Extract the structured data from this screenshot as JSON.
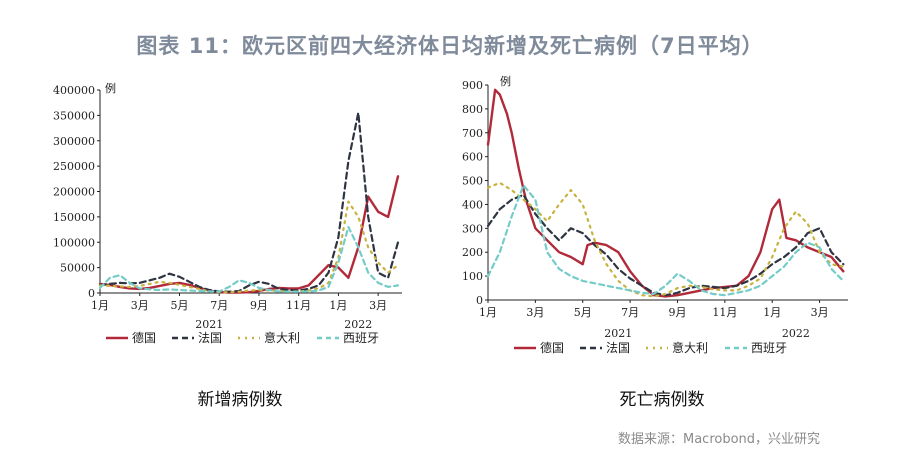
{
  "title": "图表 11：欧元区前四大经济体日均新增及死亡病例（7日平均）",
  "source": "数据来源：Macrobond，兴业研究",
  "colors": {
    "germany": "#b22a3a",
    "france": "#2e3442",
    "italy": "#c8b240",
    "spain": "#74ccc8",
    "title": "#7f8a9a"
  },
  "chart_data": [
    {
      "type": "line",
      "caption": "新增病例数",
      "unit_label": "例",
      "x_ticks": [
        "1月",
        "3月",
        "5月",
        "7月",
        "9月",
        "11月",
        "1月",
        "3月"
      ],
      "x_year_labels": [
        "2021",
        "2022"
      ],
      "x_range": [
        0,
        15.2
      ],
      "ylim": [
        0,
        400000
      ],
      "y_ticks": [
        "0",
        "50000",
        "100000",
        "150000",
        "200000",
        "250000",
        "300000",
        "350000",
        "400000"
      ],
      "grid": false,
      "legend_position": "bottom",
      "series": [
        {
          "name": "德国",
          "color": "#b22a3a",
          "dash": "solid",
          "x": [
            0,
            0.5,
            1,
            1.5,
            2,
            2.5,
            3,
            3.5,
            4,
            4.5,
            5,
            5.5,
            6,
            6.5,
            7,
            7.5,
            8,
            8.5,
            9,
            9.5,
            10,
            10.5,
            11,
            11.5,
            12,
            12.5,
            13,
            13.5,
            14,
            14.5,
            15
          ],
          "y": [
            18000,
            16000,
            12000,
            9000,
            8000,
            10000,
            14000,
            18000,
            20000,
            16000,
            10000,
            5000,
            2000,
            1000,
            800,
            1500,
            4000,
            8000,
            10000,
            9000,
            9000,
            15000,
            35000,
            55000,
            50000,
            30000,
            90000,
            190000,
            160000,
            150000,
            230000
          ]
        },
        {
          "name": "法国",
          "color": "#2e3442",
          "dash": "6,4",
          "x": [
            0,
            0.5,
            1,
            1.5,
            2,
            2.5,
            3,
            3.5,
            4,
            4.5,
            5,
            5.5,
            6,
            6.5,
            7,
            7.5,
            8,
            8.5,
            9,
            9.5,
            10,
            10.5,
            11,
            11.5,
            12,
            12.5,
            13,
            13.5,
            14,
            14.5,
            15
          ],
          "y": [
            16000,
            18000,
            20000,
            19000,
            20000,
            25000,
            30000,
            38000,
            32000,
            22000,
            12000,
            6000,
            3000,
            2500,
            4000,
            15000,
            22000,
            18000,
            8000,
            6000,
            5000,
            8000,
            15000,
            40000,
            110000,
            260000,
            355000,
            150000,
            40000,
            30000,
            100000
          ]
        },
        {
          "name": "意大利",
          "color": "#c8b240",
          "dash": "2,5",
          "x": [
            0,
            0.5,
            1,
            1.5,
            2,
            2.5,
            3,
            3.5,
            4,
            4.5,
            5,
            5.5,
            6,
            6.5,
            7,
            7.5,
            8,
            8.5,
            9,
            9.5,
            10,
            10.5,
            11,
            11.5,
            12,
            12.5,
            13,
            13.5,
            14,
            14.5,
            15
          ],
          "y": [
            15000,
            14000,
            13000,
            12000,
            14000,
            18000,
            22000,
            20000,
            16000,
            12000,
            8000,
            3000,
            1500,
            1500,
            2500,
            5000,
            6000,
            5000,
            4000,
            3000,
            3000,
            5000,
            9000,
            20000,
            70000,
            180000,
            150000,
            90000,
            60000,
            40000,
            55000
          ]
        },
        {
          "name": "西班牙",
          "color": "#74ccc8",
          "dash": "5,4",
          "x": [
            0,
            0.5,
            1,
            1.5,
            2,
            2.5,
            3,
            3.5,
            4,
            4.5,
            5,
            5.5,
            6,
            6.5,
            7,
            7.5,
            8,
            8.5,
            9,
            9.5,
            10,
            10.5,
            11,
            11.5,
            12,
            12.5,
            13,
            13.5,
            14,
            14.5,
            15
          ],
          "y": [
            10000,
            30000,
            35000,
            20000,
            9000,
            7000,
            6000,
            7000,
            6000,
            5000,
            4000,
            3000,
            3000,
            12000,
            25000,
            20000,
            10000,
            6000,
            3000,
            2500,
            2500,
            3000,
            5000,
            12000,
            60000,
            130000,
            90000,
            40000,
            20000,
            12000,
            15000
          ]
        }
      ]
    },
    {
      "type": "line",
      "caption": "死亡病例数",
      "unit_label": "例",
      "x_ticks": [
        "1月",
        "3月",
        "5月",
        "7月",
        "9月",
        "11月",
        "1月",
        "3月"
      ],
      "x_year_labels": [
        "2021",
        "2022"
      ],
      "x_range": [
        0,
        15.2
      ],
      "ylim": [
        0,
        900
      ],
      "y_ticks": [
        "0",
        "100",
        "200",
        "300",
        "400",
        "500",
        "600",
        "700",
        "800",
        "900"
      ],
      "grid": false,
      "legend_position": "bottom",
      "series": [
        {
          "name": "德国",
          "color": "#b22a3a",
          "dash": "solid",
          "x": [
            0,
            0.3,
            0.5,
            0.8,
            1,
            1.3,
            1.6,
            2,
            2.5,
            3,
            3.5,
            4,
            4.2,
            4.5,
            5,
            5.5,
            6,
            6.5,
            7,
            7.5,
            8,
            8.5,
            9,
            9.5,
            10,
            10.5,
            11,
            11.5,
            12,
            12.3,
            12.6,
            13,
            13.5,
            14,
            14.5,
            15
          ],
          "y": [
            650,
            880,
            860,
            780,
            700,
            550,
            420,
            300,
            250,
            200,
            180,
            150,
            230,
            240,
            230,
            200,
            120,
            60,
            20,
            15,
            20,
            30,
            40,
            50,
            55,
            60,
            100,
            200,
            380,
            420,
            260,
            250,
            220,
            200,
            180,
            120
          ]
        },
        {
          "name": "法国",
          "color": "#2e3442",
          "dash": "6,4",
          "x": [
            0,
            0.5,
            1,
            1.5,
            2,
            2.5,
            3,
            3.5,
            4,
            4.5,
            5,
            5.5,
            6,
            6.5,
            7,
            7.5,
            8,
            8.5,
            9,
            9.5,
            10,
            10.5,
            11,
            11.5,
            12,
            12.5,
            13,
            13.5,
            14,
            14.5,
            15
          ],
          "y": [
            310,
            380,
            420,
            440,
            360,
            300,
            250,
            300,
            280,
            230,
            190,
            130,
            90,
            60,
            30,
            20,
            30,
            50,
            60,
            55,
            50,
            60,
            80,
            110,
            150,
            180,
            220,
            280,
            300,
            200,
            150
          ]
        },
        {
          "name": "意大利",
          "color": "#c8b240",
          "dash": "2,5",
          "x": [
            0,
            0.5,
            1,
            1.5,
            2,
            2.5,
            3,
            3.5,
            4,
            4.5,
            5,
            5.5,
            6,
            6.5,
            7,
            7.5,
            8,
            8.5,
            9,
            9.5,
            10,
            10.5,
            11,
            11.5,
            12,
            12.5,
            13,
            13.5,
            14,
            14.5,
            15
          ],
          "y": [
            470,
            490,
            460,
            420,
            380,
            330,
            400,
            460,
            400,
            250,
            150,
            80,
            40,
            20,
            15,
            25,
            50,
            60,
            55,
            45,
            40,
            40,
            60,
            90,
            180,
            300,
            370,
            320,
            200,
            150,
            140
          ]
        },
        {
          "name": "西班牙",
          "color": "#74ccc8",
          "dash": "5,4",
          "x": [
            0,
            0.5,
            1,
            1.5,
            2,
            2.5,
            3,
            3.5,
            4,
            4.5,
            5,
            5.5,
            6,
            6.5,
            7,
            7.5,
            8,
            8.5,
            9,
            9.5,
            10,
            10.5,
            11,
            11.5,
            12,
            12.5,
            13,
            13.5,
            14,
            14.5,
            15
          ],
          "y": [
            100,
            200,
            350,
            480,
            420,
            200,
            130,
            100,
            80,
            70,
            60,
            50,
            40,
            30,
            25,
            60,
            110,
            80,
            40,
            25,
            20,
            30,
            40,
            60,
            100,
            140,
            200,
            240,
            220,
            130,
            80
          ]
        }
      ]
    }
  ]
}
